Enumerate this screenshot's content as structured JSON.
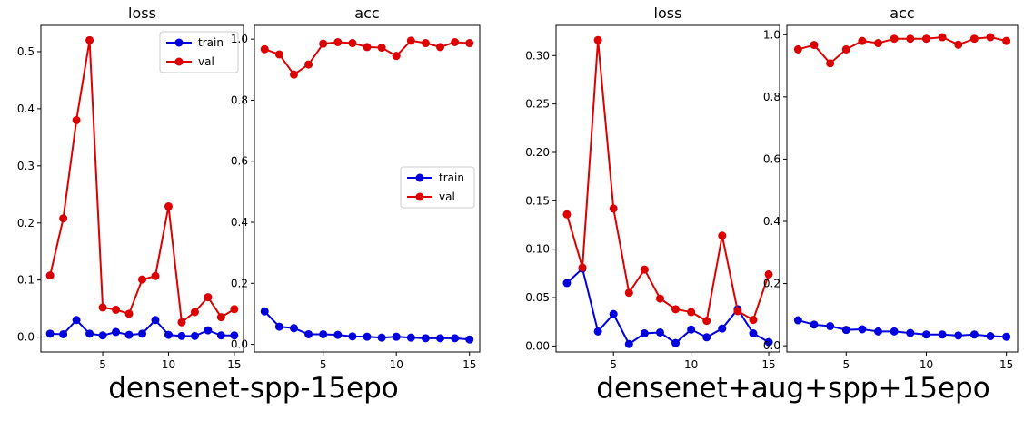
{
  "captions": {
    "left": "densenet-spp-15epo",
    "right": "densenet+aug+spp+15epo"
  },
  "colors": {
    "train": "#0000dd",
    "val": "#dd0000"
  },
  "chart_data": [
    {
      "type": "line",
      "title": "loss",
      "xlabel": "",
      "ylabel": "",
      "xlim": [
        0.3,
        15.7
      ],
      "ylim": [
        -0.026,
        0.546
      ],
      "xticks": [
        5,
        10,
        15
      ],
      "xtick_labels": [
        "5",
        "10",
        "15"
      ],
      "yticks": [
        0.0,
        0.1,
        0.2,
        0.3,
        0.4,
        0.5
      ],
      "ytick_labels": [
        "0.0",
        "0.1",
        "0.2",
        "0.3",
        "0.4",
        "0.5"
      ],
      "grid": false,
      "legend": {
        "position": "top-right",
        "entries": [
          "train",
          "val"
        ]
      },
      "series": [
        {
          "name": "train",
          "color": "#0000dd",
          "x": [
            1,
            2,
            3,
            4,
            5,
            6,
            7,
            8,
            9,
            10,
            11,
            12,
            13,
            14,
            15
          ],
          "values": [
            0.006,
            0.005,
            0.03,
            0.006,
            0.003,
            0.009,
            0.004,
            0.006,
            0.03,
            0.004,
            0.002,
            0.002,
            0.012,
            0.003,
            0.003
          ]
        },
        {
          "name": "val",
          "color": "#dd0000",
          "x": [
            1,
            2,
            3,
            4,
            5,
            6,
            7,
            8,
            9,
            10,
            11,
            12,
            13,
            14,
            15
          ],
          "values": [
            0.108,
            0.208,
            0.38,
            0.52,
            0.052,
            0.048,
            0.041,
            0.101,
            0.107,
            0.229,
            0.026,
            0.044,
            0.07,
            0.035,
            0.049
          ]
        }
      ]
    },
    {
      "type": "line",
      "title": "acc",
      "xlabel": "",
      "ylabel": "",
      "xlim": [
        0.3,
        15.7
      ],
      "ylim": [
        -0.025,
        1.045
      ],
      "xticks": [
        5,
        10,
        15
      ],
      "xtick_labels": [
        "5",
        "10",
        "15"
      ],
      "yticks": [
        0.0,
        0.2,
        0.4,
        0.6,
        0.8,
        1.0
      ],
      "ytick_labels": [
        "0.0",
        "0.2",
        "0.4",
        "0.6",
        "0.8",
        "1.0"
      ],
      "grid": false,
      "legend": {
        "position": "center-right",
        "entries": [
          "train",
          "val"
        ]
      },
      "series": [
        {
          "name": "train",
          "color": "#0000dd",
          "x": [
            1,
            2,
            3,
            4,
            5,
            6,
            7,
            8,
            9,
            10,
            11,
            12,
            13,
            14,
            15
          ],
          "values": [
            0.108,
            0.058,
            0.053,
            0.033,
            0.033,
            0.031,
            0.026,
            0.025,
            0.022,
            0.025,
            0.022,
            0.02,
            0.02,
            0.02,
            0.016
          ]
        },
        {
          "name": "val",
          "color": "#dd0000",
          "x": [
            1,
            2,
            3,
            4,
            5,
            6,
            7,
            8,
            9,
            10,
            11,
            12,
            13,
            14,
            15
          ],
          "values": [
            0.967,
            0.95,
            0.884,
            0.917,
            0.985,
            0.99,
            0.987,
            0.974,
            0.972,
            0.945,
            0.995,
            0.987,
            0.974,
            0.99,
            0.987
          ]
        }
      ]
    },
    {
      "type": "line",
      "title": "loss",
      "xlabel": "",
      "ylabel": "",
      "xlim": [
        1.3,
        15.7
      ],
      "ylim": [
        -0.0062,
        0.3312
      ],
      "xticks": [
        5,
        10,
        15
      ],
      "xtick_labels": [
        "5",
        "10",
        "15"
      ],
      "yticks": [
        0.0,
        0.05,
        0.1,
        0.15,
        0.2,
        0.25,
        0.3
      ],
      "ytick_labels": [
        "0.00",
        "0.05",
        "0.10",
        "0.15",
        "0.20",
        "0.25",
        "0.30"
      ],
      "grid": false,
      "legend": null,
      "series": [
        {
          "name": "train",
          "color": "#0000dd",
          "x": [
            2,
            3,
            4,
            5,
            6,
            7,
            8,
            9,
            10,
            11,
            12,
            13,
            14,
            15
          ],
          "values": [
            0.065,
            0.08,
            0.015,
            0.033,
            0.002,
            0.013,
            0.014,
            0.003,
            0.017,
            0.009,
            0.018,
            0.038,
            0.013,
            0.004
          ]
        },
        {
          "name": "val",
          "color": "#dd0000",
          "x": [
            2,
            3,
            4,
            5,
            6,
            7,
            8,
            9,
            10,
            11,
            12,
            13,
            14,
            15
          ],
          "values": [
            0.136,
            0.081,
            0.316,
            0.142,
            0.055,
            0.079,
            0.049,
            0.038,
            0.035,
            0.026,
            0.114,
            0.036,
            0.027,
            0.074
          ]
        }
      ]
    },
    {
      "type": "line",
      "title": "acc",
      "xlabel": "",
      "ylabel": "",
      "xlim": [
        1.3,
        15.7
      ],
      "ylim": [
        -0.02,
        1.03
      ],
      "xticks": [
        5,
        10,
        15
      ],
      "xtick_labels": [
        "5",
        "10",
        "15"
      ],
      "yticks": [
        0.0,
        0.2,
        0.4,
        0.6,
        0.8,
        1.0
      ],
      "ytick_labels": [
        "0.0",
        "0.2",
        "0.4",
        "0.6",
        "0.8",
        "1.0"
      ],
      "grid": false,
      "legend": null,
      "series": [
        {
          "name": "train",
          "color": "#0000dd",
          "x": [
            2,
            3,
            4,
            5,
            6,
            7,
            8,
            9,
            10,
            11,
            12,
            13,
            14,
            15
          ],
          "values": [
            0.082,
            0.068,
            0.063,
            0.051,
            0.053,
            0.046,
            0.046,
            0.041,
            0.036,
            0.036,
            0.033,
            0.036,
            0.031,
            0.029
          ]
        },
        {
          "name": "val",
          "color": "#dd0000",
          "x": [
            2,
            3,
            4,
            5,
            6,
            7,
            8,
            9,
            10,
            11,
            12,
            13,
            14,
            15
          ],
          "values": [
            0.953,
            0.967,
            0.908,
            0.953,
            0.98,
            0.973,
            0.987,
            0.987,
            0.987,
            0.992,
            0.968,
            0.987,
            0.992,
            0.98
          ]
        }
      ]
    }
  ]
}
